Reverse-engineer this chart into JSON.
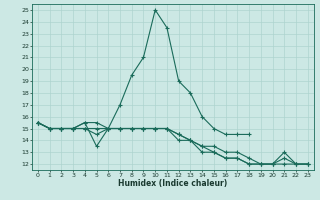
{
  "xlabel": "Humidex (Indice chaleur)",
  "bg_color": "#cce8e4",
  "grid_color": "#aed4cf",
  "line_color": "#1a6b5a",
  "series": [
    {
      "x": [
        0,
        1,
        2,
        3,
        4,
        5,
        6,
        7,
        8,
        9,
        10,
        11,
        12,
        13,
        14,
        15,
        16,
        17,
        18
      ],
      "y": [
        15.5,
        15.0,
        15.0,
        15.0,
        15.5,
        13.5,
        15.0,
        17.0,
        19.5,
        21.0,
        25.0,
        23.5,
        19.0,
        18.0,
        16.0,
        15.0,
        14.5,
        14.5,
        14.5
      ]
    },
    {
      "x": [
        0,
        1,
        2,
        3,
        4,
        5,
        6,
        7,
        8,
        9,
        10,
        11,
        12,
        13,
        14,
        15,
        16,
        17,
        18,
        19,
        20,
        21,
        22,
        23
      ],
      "y": [
        15.5,
        15.0,
        15.0,
        15.0,
        15.5,
        15.5,
        15.0,
        15.0,
        15.0,
        15.0,
        15.0,
        15.0,
        14.5,
        14.0,
        13.5,
        13.5,
        13.0,
        13.0,
        12.5,
        12.0,
        12.0,
        12.5,
        12.0,
        12.0
      ]
    },
    {
      "x": [
        0,
        1,
        2,
        3,
        4,
        5,
        6,
        7,
        8,
        9,
        10,
        11,
        12,
        13,
        14,
        15,
        16,
        17,
        18,
        19,
        20,
        21,
        22,
        23
      ],
      "y": [
        15.5,
        15.0,
        15.0,
        15.0,
        15.0,
        15.0,
        15.0,
        15.0,
        15.0,
        15.0,
        15.0,
        15.0,
        14.5,
        14.0,
        13.5,
        13.0,
        12.5,
        12.5,
        12.0,
        12.0,
        12.0,
        13.0,
        12.0,
        12.0
      ]
    },
    {
      "x": [
        0,
        1,
        2,
        3,
        4,
        5,
        6,
        7,
        8,
        9,
        10,
        11,
        12,
        13,
        14,
        15,
        16,
        17,
        18,
        19,
        20,
        21,
        22,
        23
      ],
      "y": [
        15.5,
        15.0,
        15.0,
        15.0,
        15.0,
        14.5,
        15.0,
        15.0,
        15.0,
        15.0,
        15.0,
        15.0,
        14.0,
        14.0,
        13.0,
        13.0,
        12.5,
        12.5,
        12.0,
        12.0,
        12.0,
        12.0,
        12.0,
        12.0
      ]
    }
  ],
  "ylim": [
    11.5,
    25.5
  ],
  "xlim": [
    -0.5,
    23.5
  ],
  "yticks": [
    12,
    13,
    14,
    15,
    16,
    17,
    18,
    19,
    20,
    21,
    22,
    23,
    24,
    25
  ],
  "xticks": [
    0,
    1,
    2,
    3,
    4,
    5,
    6,
    7,
    8,
    9,
    10,
    11,
    12,
    13,
    14,
    15,
    16,
    17,
    18,
    19,
    20,
    21,
    22,
    23
  ]
}
